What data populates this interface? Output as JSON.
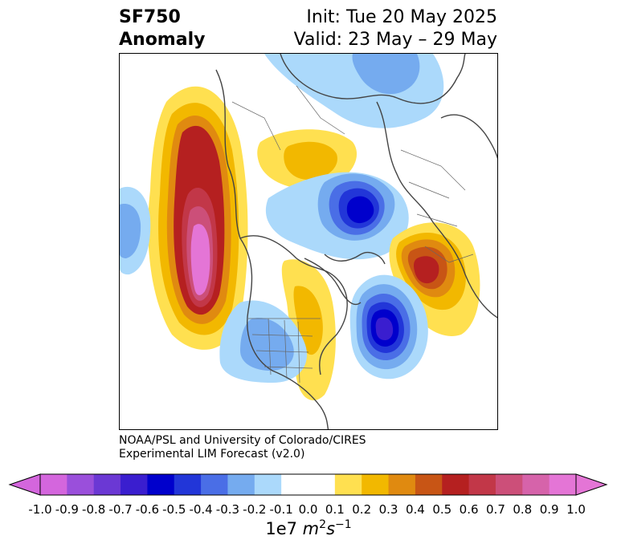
{
  "title": {
    "line1": "SF750",
    "line2": "Anomaly"
  },
  "init_line": "Init: Tue 20 May 2025",
  "valid_line": "Valid: 23 May – 29 May",
  "credit": {
    "line1": "NOAA/PSL and University of Colorado/CIRES",
    "line2": "Experimental LIM Forecast (v2.0)"
  },
  "colorbar": {
    "ticks": [
      "-1.0",
      "-0.9",
      "-0.8",
      "-0.7",
      "-0.6",
      "-0.5",
      "-0.4",
      "-0.3",
      "-0.2",
      "-0.1",
      "0.0",
      "0.1",
      "0.2",
      "0.3",
      "0.4",
      "0.5",
      "0.6",
      "0.7",
      "0.8",
      "0.9",
      "1.0"
    ],
    "colors": [
      "#d466dd",
      "#9a4fdb",
      "#6b38d4",
      "#3a1ecf",
      "#0000cc",
      "#2236d8",
      "#4a6ee6",
      "#75abef",
      "#abd9fb",
      "#ffffff",
      "#ffffff",
      "#ffe050",
      "#f2b800",
      "#e08a10",
      "#c85515",
      "#b52020",
      "#c23748",
      "#cc4f79",
      "#d663aa",
      "#e475d6"
    ],
    "under_color": "#d466dd",
    "over_color": "#e475d6",
    "units_prefix": "1e7 ",
    "units_m": "m",
    "units_m_exp": "2",
    "units_s": "s",
    "units_s_exp": "−1"
  },
  "map_features": {
    "anomalies": [
      {
        "name": "pacific-high",
        "sign": "positive",
        "peak": 1.0
      },
      {
        "name": "pacific-low",
        "sign": "negative",
        "peak": -0.3
      },
      {
        "name": "arctic-low",
        "sign": "negative",
        "peak": -0.6
      },
      {
        "name": "atlantic-low",
        "sign": "negative",
        "peak": -0.6
      },
      {
        "name": "europe-high",
        "sign": "positive",
        "peak": 0.6
      },
      {
        "name": "siberia-high",
        "sign": "positive",
        "peak": 0.3
      },
      {
        "name": "great-lakes-high",
        "sign": "positive",
        "peak": 0.3
      },
      {
        "name": "western-us-low",
        "sign": "negative",
        "peak": -0.3
      },
      {
        "name": "northern-asia-low",
        "sign": "negative",
        "peak": -0.2
      }
    ]
  }
}
